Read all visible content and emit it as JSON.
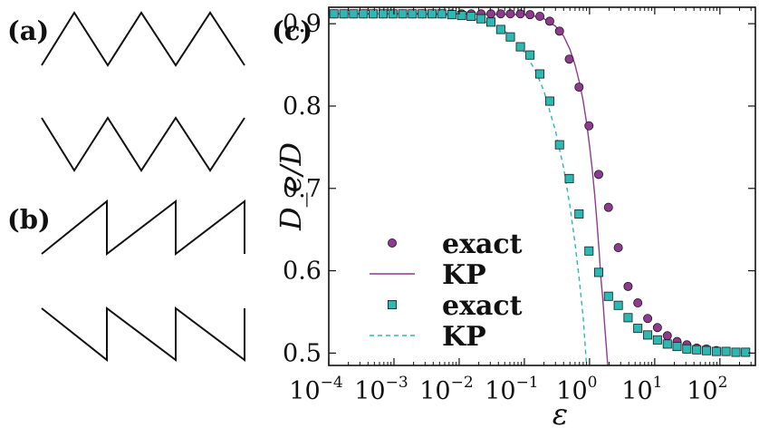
{
  "panels": {
    "a": {
      "label": "(a)"
    },
    "b": {
      "label": "(b)"
    },
    "c": {
      "label": "(c)"
    }
  },
  "colors": {
    "purple": "#8e3a8e",
    "teal": "#2db8b4",
    "marker_edge": "#1a1a1a",
    "axis": "#111111"
  },
  "chart_data": {
    "type": "scatter",
    "xlabel": "ε",
    "ylabel": "D_e/D",
    "xscale": "log",
    "xlim": [
      0.0001,
      350
    ],
    "ylim": [
      0.485,
      0.92
    ],
    "grid": false,
    "legend_placement": "bottom-left",
    "x_ticks": [
      {
        "value": 0.0001,
        "base": "10",
        "exp": "−4"
      },
      {
        "value": 0.001,
        "base": "10",
        "exp": "−3"
      },
      {
        "value": 0.01,
        "base": "10",
        "exp": "−2"
      },
      {
        "value": 0.1,
        "base": "10",
        "exp": "−1"
      },
      {
        "value": 1,
        "base": "10",
        "exp": "0"
      },
      {
        "value": 10,
        "base": "10",
        "exp": "1"
      },
      {
        "value": 100,
        "base": "10",
        "exp": "2"
      }
    ],
    "y_ticks": [
      {
        "value": 0.5,
        "label": "0.5"
      },
      {
        "value": 0.6,
        "label": "0.6"
      },
      {
        "value": 0.7,
        "label": "0.7"
      },
      {
        "value": 0.8,
        "label": "0.8"
      },
      {
        "value": 0.9,
        "label": "0.9"
      }
    ],
    "series": [
      {
        "name": "exact",
        "kind": "markers",
        "marker": "circle",
        "color": "#8e3a8e",
        "x": [
          0.00012,
          0.00017,
          0.00024,
          0.00034,
          0.00048,
          0.00068,
          0.00096,
          0.00136,
          0.00192,
          0.00272,
          0.00384,
          0.0054,
          0.0077,
          0.0109,
          0.0153,
          0.0217,
          0.0307,
          0.0434,
          0.061,
          0.087,
          0.122,
          0.173,
          0.245,
          0.346,
          0.489,
          0.69,
          0.98,
          1.38,
          1.95,
          2.76,
          3.9,
          5.5,
          7.8,
          11.0,
          15.6,
          22.0,
          31.1,
          44,
          62,
          88,
          124,
          176,
          248
        ],
        "y": [
          0.912,
          0.912,
          0.912,
          0.912,
          0.912,
          0.912,
          0.912,
          0.912,
          0.912,
          0.912,
          0.912,
          0.912,
          0.912,
          0.912,
          0.912,
          0.912,
          0.912,
          0.912,
          0.912,
          0.912,
          0.911,
          0.909,
          0.903,
          0.891,
          0.857,
          0.823,
          0.776,
          0.717,
          0.677,
          0.628,
          0.581,
          0.561,
          0.542,
          0.531,
          0.521,
          0.514,
          0.51,
          0.506,
          0.505,
          0.503,
          0.502,
          0.501,
          0.501
        ]
      },
      {
        "name": "KP",
        "kind": "line",
        "dash": "solid",
        "color": "#8e3a8e",
        "x": [
          0.0001,
          0.01,
          0.1,
          0.15,
          0.2,
          0.3,
          0.4,
          0.5,
          0.6,
          0.7,
          0.8,
          0.9,
          1.0,
          1.1,
          1.2,
          1.3,
          1.4,
          1.5,
          1.6,
          1.7,
          1.8,
          1.9
        ],
        "y": [
          0.912,
          0.912,
          0.911,
          0.909,
          0.906,
          0.897,
          0.885,
          0.869,
          0.85,
          0.829,
          0.806,
          0.78,
          0.752,
          0.723,
          0.692,
          0.659,
          0.625,
          0.589,
          0.565,
          0.535,
          0.51,
          0.485
        ]
      },
      {
        "name": "exact",
        "kind": "markers",
        "marker": "square",
        "color": "#2db8b4",
        "x": [
          0.00012,
          0.00017,
          0.00024,
          0.00034,
          0.00048,
          0.00068,
          0.00096,
          0.00136,
          0.00192,
          0.00272,
          0.00384,
          0.0054,
          0.0077,
          0.0109,
          0.0153,
          0.0217,
          0.0307,
          0.0434,
          0.061,
          0.087,
          0.122,
          0.173,
          0.245,
          0.346,
          0.489,
          0.69,
          0.98,
          1.38,
          1.95,
          2.76,
          3.9,
          5.5,
          7.8,
          11.0,
          15.6,
          22.0,
          31.1,
          44,
          62,
          88,
          124,
          176,
          248
        ],
        "y": [
          0.912,
          0.912,
          0.912,
          0.912,
          0.912,
          0.912,
          0.912,
          0.912,
          0.912,
          0.912,
          0.912,
          0.912,
          0.911,
          0.91,
          0.909,
          0.906,
          0.902,
          0.893,
          0.884,
          0.872,
          0.862,
          0.839,
          0.806,
          0.753,
          0.712,
          0.669,
          0.624,
          0.598,
          0.569,
          0.558,
          0.543,
          0.53,
          0.522,
          0.516,
          0.511,
          0.508,
          0.505,
          0.504,
          0.503,
          0.502,
          0.502,
          0.501,
          0.501
        ]
      },
      {
        "name": "KP",
        "kind": "line",
        "dash": "dashed",
        "color": "#2db8b4",
        "x": [
          0.0001,
          0.001,
          0.005,
          0.01,
          0.02,
          0.03,
          0.05,
          0.07,
          0.1,
          0.15,
          0.2,
          0.3,
          0.4,
          0.5,
          0.6,
          0.7,
          0.8,
          0.9
        ],
        "y": [
          0.912,
          0.912,
          0.911,
          0.909,
          0.905,
          0.9,
          0.891,
          0.881,
          0.866,
          0.842,
          0.818,
          0.77,
          0.725,
          0.679,
          0.633,
          0.588,
          0.543,
          0.485
        ]
      }
    ]
  }
}
